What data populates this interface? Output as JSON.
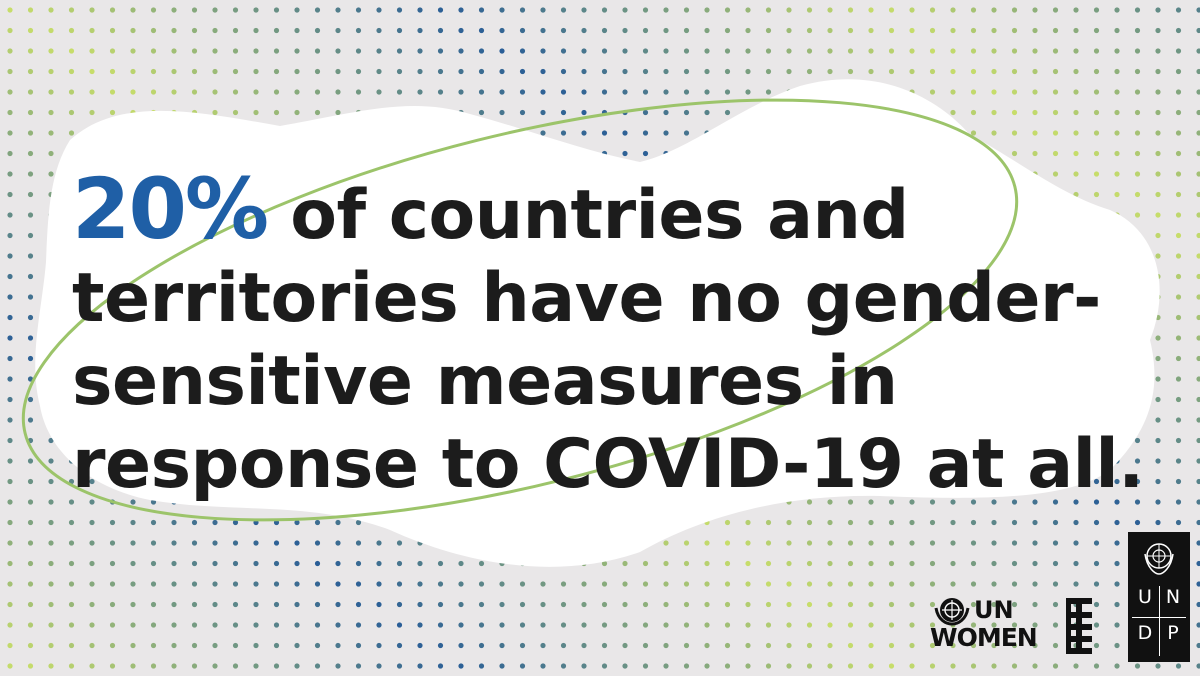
{
  "headline": {
    "percent": "20%",
    "line1_rest": " of countries and",
    "line2": "territories have no gender-",
    "line3": "sensitive measures in",
    "line4": "response to COVID-19 at all."
  },
  "logos": {
    "un_women_line1": "UN",
    "un_women_line2": "WOMEN",
    "undp_letters": [
      "U",
      "N",
      "D",
      "P"
    ]
  },
  "colors": {
    "background": "#e9e7e8",
    "accent": "#1f5fa6",
    "text": "#1c1c1c",
    "ring": "#9cc46a",
    "dot_light": "#c8de6a",
    "dot_dark": "#2a5e97"
  }
}
